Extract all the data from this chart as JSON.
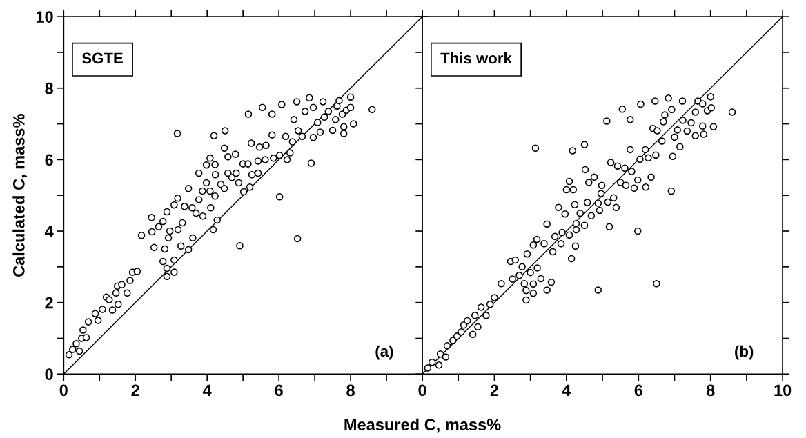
{
  "chart_data": [
    {
      "type": "scatter",
      "xlabel": "Measured C, mass%",
      "ylabel": "Calculated C, mass%",
      "annotations": [
        "SGTE",
        "(a)"
      ],
      "xlim": [
        0,
        10
      ],
      "ylim": [
        0,
        10
      ],
      "xticks": [
        0,
        {
          "value": 1,
          "label": null
        },
        2,
        {
          "value": 3,
          "label": null
        },
        4,
        {
          "value": 5,
          "label": null
        },
        6,
        {
          "value": 7,
          "label": null
        },
        8,
        {
          "value": 9,
          "label": null
        },
        {
          "value": 10,
          "label": null
        }
      ],
      "yticks": [
        0,
        {
          "value": 1,
          "label": null
        },
        2,
        {
          "value": 3,
          "label": null
        },
        4,
        {
          "value": 5,
          "label": null
        },
        6,
        {
          "value": 7,
          "label": null
        },
        8,
        {
          "value": 9,
          "label": null
        },
        10
      ],
      "grid": false,
      "marker": "circle",
      "series": [
        {
          "color": "#000000",
          "x": [
            0.15,
            0.25,
            0.35,
            0.44,
            0.5,
            0.63,
            0.54,
            0.69,
            0.88,
            0.96,
            1.08,
            1.19,
            1.27,
            1.36,
            1.46,
            1.52,
            1.5,
            1.62,
            1.77,
            1.85,
            1.92,
            2.05,
            2.17,
            2.45,
            2.46,
            2.52,
            2.65,
            2.77,
            2.88,
            2.82,
            2.77,
            2.88,
            2.88,
            2.92,
            2.96,
            3.08,
            3.08,
            3.08,
            3.17,
            3.18,
            3.19,
            3.31,
            3.27,
            3.37,
            3.48,
            3.48,
            3.58,
            3.6,
            3.69,
            3.77,
            3.77,
            3.88,
            3.87,
            3.98,
            3.98,
            4.08,
            4.08,
            4.1,
            4.17,
            4.19,
            4.22,
            4.23,
            4.22,
            4.28,
            4.38,
            4.5,
            4.48,
            4.48,
            4.58,
            4.58,
            4.69,
            4.79,
            4.81,
            4.91,
            4.88,
            5.0,
            5.02,
            5.15,
            5.14,
            5.19,
            5.23,
            5.25,
            5.42,
            5.42,
            5.46,
            5.54,
            5.62,
            5.64,
            5.81,
            5.81,
            5.85,
            6.02,
            6.02,
            6.08,
            6.19,
            6.23,
            6.31,
            6.38,
            6.5,
            6.52,
            6.42,
            6.54,
            6.65,
            6.73,
            6.85,
            6.9,
            6.96,
            6.96,
            7.08,
            7.15,
            7.23,
            7.27,
            7.38,
            7.5,
            7.58,
            7.62,
            7.68,
            7.77,
            7.81,
            7.81,
            7.88,
            8.0,
            8.0,
            8.08,
            8.6
          ],
          "values": [
            0.54,
            0.69,
            0.85,
            0.64,
            1.0,
            1.02,
            1.23,
            1.46,
            1.69,
            1.5,
            1.81,
            2.15,
            2.08,
            1.79,
            2.27,
            1.95,
            2.46,
            2.5,
            2.27,
            2.62,
            2.85,
            2.87,
            3.88,
            4.38,
            3.98,
            3.54,
            4.12,
            4.27,
            4.54,
            3.5,
            3.15,
            2.73,
            2.96,
            3.81,
            4.0,
            4.73,
            2.85,
            3.19,
            6.73,
            4.92,
            4.04,
            4.23,
            3.58,
            4.69,
            5.19,
            3.48,
            4.65,
            3.81,
            4.5,
            5.62,
            4.88,
            4.42,
            5.12,
            5.85,
            5.35,
            6.04,
            5.12,
            4.65,
            4.04,
            6.67,
            5.86,
            5.58,
            4.98,
            4.31,
            5.31,
            6.81,
            6.32,
            5.19,
            5.62,
            6.08,
            5.5,
            6.15,
            5.62,
            3.59,
            5.35,
            5.88,
            5.1,
            7.27,
            5.88,
            5.23,
            6.46,
            5.58,
            5.62,
            5.96,
            6.35,
            7.46,
            6.0,
            6.4,
            7.27,
            6.69,
            6.04,
            4.96,
            6.12,
            7.54,
            6.65,
            6.0,
            6.19,
            6.5,
            7.62,
            3.79,
            7.12,
            6.81,
            6.65,
            7.35,
            7.73,
            5.9,
            7.46,
            6.62,
            7.04,
            6.77,
            7.62,
            7.19,
            7.35,
            6.82,
            7.12,
            7.5,
            7.65,
            7.27,
            6.73,
            6.92,
            7.38,
            7.75,
            7.46,
            7.0,
            7.4
          ]
        },
        {
          "type": "line",
          "color": "#000000",
          "marker": "none",
          "x": [
            0,
            10
          ],
          "values": [
            0,
            10
          ]
        }
      ]
    },
    {
      "type": "scatter",
      "annotations": [
        "This work",
        "(b)"
      ],
      "xlim": [
        0,
        10
      ],
      "ylim": [
        0,
        10
      ],
      "tick_labels": "x",
      "xticks": [
        0,
        {
          "value": 1,
          "label": null
        },
        2,
        {
          "value": 3,
          "label": null
        },
        4,
        {
          "value": 5,
          "label": null
        },
        6,
        {
          "value": 7,
          "label": null
        },
        8,
        {
          "value": 9,
          "label": null
        },
        10
      ],
      "yticks": [
        0,
        {
          "value": 1,
          "label": null
        },
        2,
        {
          "value": 3,
          "label": null
        },
        4,
        {
          "value": 5,
          "label": null
        },
        6,
        {
          "value": 7,
          "label": null
        },
        8,
        {
          "value": 9,
          "label": null
        },
        10
      ],
      "grid": false,
      "marker": "circle",
      "series": [
        {
          "color": "#000000",
          "x": [
            0.15,
            0.27,
            0.46,
            0.5,
            0.65,
            0.69,
            0.85,
            0.96,
            1.08,
            1.15,
            1.25,
            1.4,
            1.46,
            1.54,
            1.63,
            1.77,
            1.88,
            2.0,
            2.19,
            2.45,
            2.5,
            2.58,
            2.69,
            2.77,
            2.83,
            2.88,
            2.88,
            2.91,
            3.0,
            3.08,
            3.08,
            3.14,
            3.08,
            3.18,
            3.19,
            3.29,
            3.38,
            3.46,
            3.46,
            3.58,
            3.62,
            3.68,
            3.78,
            3.85,
            3.88,
            3.96,
            4.0,
            4.08,
            4.08,
            4.14,
            4.17,
            4.19,
            4.23,
            4.27,
            4.27,
            4.25,
            4.38,
            4.5,
            4.52,
            4.5,
            4.58,
            4.62,
            4.69,
            4.77,
            4.88,
            4.88,
            4.92,
            4.98,
            4.96,
            5.12,
            5.15,
            5.19,
            5.23,
            5.31,
            5.38,
            5.42,
            5.5,
            5.55,
            5.62,
            5.65,
            5.77,
            5.77,
            5.81,
            5.88,
            5.98,
            5.98,
            6.06,
            6.04,
            6.19,
            6.2,
            6.27,
            6.35,
            6.4,
            6.46,
            6.48,
            6.5,
            6.52,
            6.65,
            6.69,
            6.73,
            6.83,
            6.91,
            6.92,
            6.95,
            7.0,
            7.08,
            7.15,
            7.22,
            7.23,
            7.35,
            7.46,
            7.58,
            7.58,
            7.65,
            7.78,
            7.81,
            7.78,
            7.91,
            8.0,
            8.02,
            8.08,
            8.6
          ],
          "values": [
            0.17,
            0.33,
            0.25,
            0.56,
            0.48,
            0.79,
            0.94,
            1.06,
            1.18,
            1.37,
            1.49,
            1.11,
            1.64,
            1.32,
            1.87,
            1.64,
            1.95,
            2.14,
            2.53,
            3.15,
            2.66,
            3.19,
            2.76,
            3.0,
            2.53,
            2.07,
            2.34,
            3.36,
            2.84,
            2.26,
            2.52,
            6.32,
            3.61,
            3.77,
            2.97,
            2.67,
            3.65,
            2.35,
            4.2,
            2.57,
            3.42,
            3.85,
            4.66,
            3.65,
            3.96,
            4.48,
            5.16,
            5.39,
            3.89,
            3.23,
            6.25,
            5.16,
            4.74,
            4.04,
            4.21,
            3.58,
            4.5,
            6.42,
            5.72,
            4.16,
            4.8,
            5.36,
            4.43,
            5.51,
            2.35,
            4.78,
            4.58,
            5.28,
            5.05,
            7.08,
            4.81,
            4.12,
            5.92,
            4.93,
            4.66,
            5.82,
            5.36,
            7.41,
            5.76,
            5.28,
            7.12,
            6.28,
            5.67,
            5.2,
            4.0,
            5.43,
            7.55,
            6.01,
            6.28,
            5.23,
            6.05,
            5.51,
            6.87,
            7.64,
            6.13,
            2.53,
            6.81,
            6.52,
            7.06,
            7.25,
            7.72,
            5.12,
            7.4,
            6.09,
            6.63,
            6.83,
            6.36,
            7.64,
            7.1,
            6.8,
            7.03,
            7.33,
            6.67,
            7.64,
            7.56,
            6.71,
            6.94,
            7.37,
            7.76,
            7.45,
            6.92,
            7.33
          ]
        },
        {
          "type": "line",
          "color": "#000000",
          "marker": "none",
          "x": [
            0,
            10
          ],
          "values": [
            0,
            10
          ]
        }
      ]
    }
  ]
}
